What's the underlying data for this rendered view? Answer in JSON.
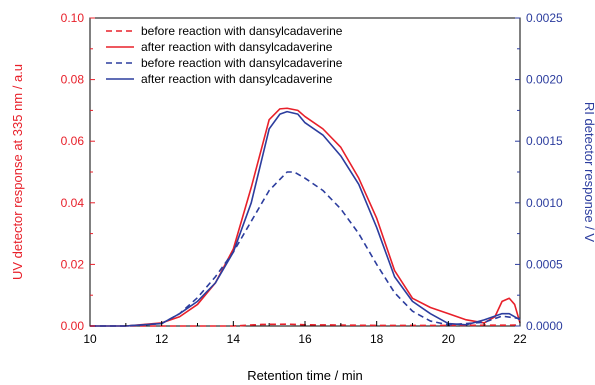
{
  "chart_data": {
    "type": "line",
    "title": "",
    "xlabel": "Retention time / min",
    "ylabel_left": "UV detector response at 335 nm / a.u",
    "ylabel_right": "RI detector response / V",
    "xlim": [
      10,
      22
    ],
    "ylim_left": [
      0,
      0.1
    ],
    "ylim_right": [
      0,
      0.0025
    ],
    "x_ticks": [
      "10",
      "12",
      "14",
      "16",
      "18",
      "20",
      "22"
    ],
    "y_left_ticks": [
      "0.00",
      "0.02",
      "0.04",
      "0.06",
      "0.08",
      "0.10"
    ],
    "y_right_ticks": [
      "0.0000",
      "0.0005",
      "0.0010",
      "0.0015",
      "0.0020",
      "0.0025"
    ],
    "grid": false,
    "legend_position": "top-left",
    "colors": {
      "uv": "#e8202a",
      "ri": "#2c3d9e"
    },
    "series": [
      {
        "name": "before reaction with dansylcadaverine",
        "axis": "left",
        "color": "#e8202a",
        "dash": true,
        "points": [
          [
            10,
            0
          ],
          [
            12,
            0
          ],
          [
            14,
            0
          ],
          [
            14.8,
            0.0005
          ],
          [
            15.5,
            0.0006
          ],
          [
            16,
            0.0004
          ],
          [
            18,
            0.0002
          ],
          [
            20,
            0.0002
          ],
          [
            22,
            0.0003
          ]
        ]
      },
      {
        "name": "after reaction with dansylcadaverine",
        "axis": "left",
        "color": "#e8202a",
        "dash": false,
        "points": [
          [
            10,
            0
          ],
          [
            11,
            0
          ],
          [
            12,
            0.001
          ],
          [
            12.5,
            0.003
          ],
          [
            13,
            0.007
          ],
          [
            13.5,
            0.014
          ],
          [
            14,
            0.025
          ],
          [
            14.5,
            0.045
          ],
          [
            15,
            0.067
          ],
          [
            15.3,
            0.0705
          ],
          [
            15.5,
            0.0707
          ],
          [
            15.8,
            0.07
          ],
          [
            16,
            0.068
          ],
          [
            16.5,
            0.064
          ],
          [
            17,
            0.058
          ],
          [
            17.5,
            0.048
          ],
          [
            18,
            0.035
          ],
          [
            18.5,
            0.018
          ],
          [
            19,
            0.009
          ],
          [
            19.5,
            0.006
          ],
          [
            20,
            0.004
          ],
          [
            20.5,
            0.002
          ],
          [
            21,
            0.001
          ],
          [
            21.3,
            0.003
          ],
          [
            21.5,
            0.008
          ],
          [
            21.7,
            0.009
          ],
          [
            21.85,
            0.007
          ],
          [
            22,
            0.001
          ]
        ]
      },
      {
        "name": "before reaction with dansylcadaverine",
        "axis": "right",
        "color": "#2c3d9e",
        "dash": true,
        "points": [
          [
            10,
            0
          ],
          [
            11,
            0
          ],
          [
            12,
            2e-05
          ],
          [
            12.5,
            0.0001
          ],
          [
            13,
            0.00023
          ],
          [
            13.5,
            0.0004
          ],
          [
            14,
            0.0006
          ],
          [
            14.5,
            0.00085
          ],
          [
            15,
            0.0011
          ],
          [
            15.5,
            0.00125
          ],
          [
            15.7,
            0.00125
          ],
          [
            16,
            0.0012
          ],
          [
            16.5,
            0.0011
          ],
          [
            17,
            0.00095
          ],
          [
            17.5,
            0.00075
          ],
          [
            18,
            0.0005
          ],
          [
            18.5,
            0.00027
          ],
          [
            19,
            0.00012
          ],
          [
            19.5,
            4e-05
          ],
          [
            20,
            1e-05
          ],
          [
            21,
            3e-05
          ],
          [
            21.5,
            8e-05
          ],
          [
            22,
            6e-05
          ]
        ]
      },
      {
        "name": "after reaction with dansylcadaverine",
        "axis": "right",
        "color": "#2c3d9e",
        "dash": false,
        "points": [
          [
            10,
            0
          ],
          [
            11,
            0
          ],
          [
            12,
            2e-05
          ],
          [
            12.5,
            0.0001
          ],
          [
            13,
            0.0002
          ],
          [
            13.5,
            0.00035
          ],
          [
            14,
            0.0006
          ],
          [
            14.5,
            0.001
          ],
          [
            15,
            0.0016
          ],
          [
            15.3,
            0.00172
          ],
          [
            15.5,
            0.00174
          ],
          [
            15.8,
            0.00172
          ],
          [
            16,
            0.00165
          ],
          [
            16.5,
            0.00155
          ],
          [
            17,
            0.00138
          ],
          [
            17.5,
            0.00115
          ],
          [
            18,
            0.0008
          ],
          [
            18.5,
            0.0004
          ],
          [
            19,
            0.0002
          ],
          [
            19.5,
            0.0001
          ],
          [
            20,
            2e-05
          ],
          [
            20.5,
            1e-05
          ],
          [
            21,
            5e-05
          ],
          [
            21.5,
            0.0001
          ],
          [
            21.7,
            0.0001
          ],
          [
            22,
            5e-05
          ]
        ]
      }
    ]
  }
}
